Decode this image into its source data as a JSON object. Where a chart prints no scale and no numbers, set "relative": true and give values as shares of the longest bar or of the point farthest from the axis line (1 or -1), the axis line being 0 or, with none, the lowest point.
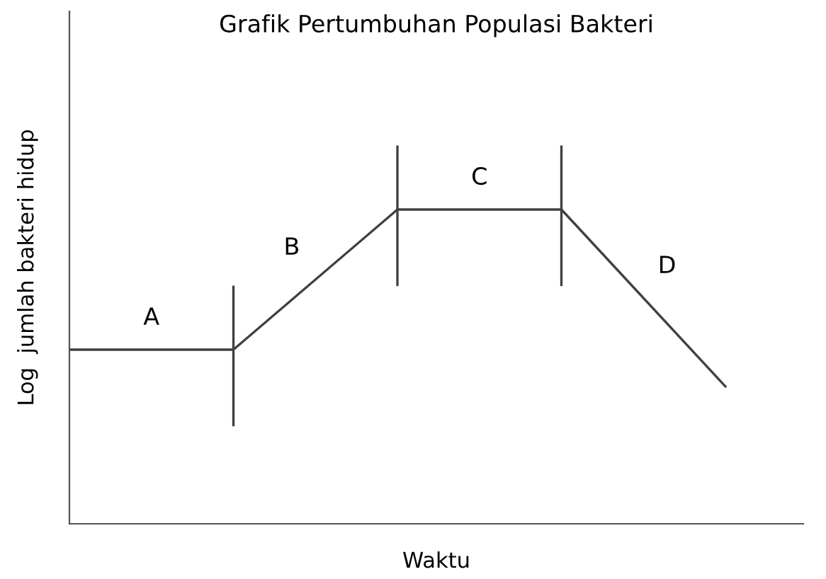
{
  "chart_data": {
    "type": "line",
    "title": "Grafik Pertumbuhan Populasi Bakteri",
    "xlabel": "Waktu",
    "ylabel": "Log  jumlah bakteri hidup",
    "relative": true,
    "tick_labels": false,
    "marker": "none",
    "line_style": "solid",
    "categories": [
      null,
      null,
      null,
      null,
      null
    ],
    "series": [
      {
        "color": "#404040",
        "values": [
          0.554,
          0.554,
          1,
          1,
          0.437
        ]
      }
    ],
    "annotations": [
      "A",
      "B",
      "C",
      "D"
    ]
  }
}
